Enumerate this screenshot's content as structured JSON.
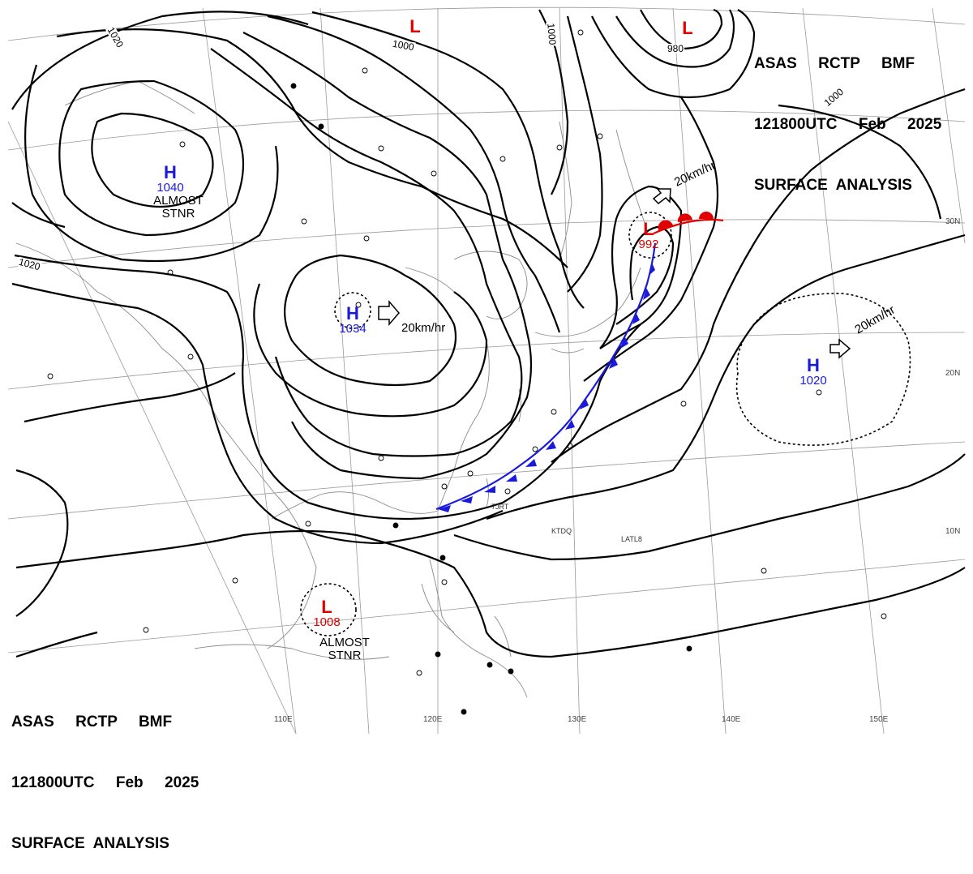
{
  "header": {
    "line1": "ASAS     RCTP     BMF",
    "line2": "121800UTC     Feb     2025",
    "line3": "SURFACE  ANALYSIS"
  },
  "pressure_centers": {
    "h_siberia": {
      "symbol": "H",
      "value": "1040",
      "note1": "ALMOST",
      "note2": "STNR"
    },
    "h_china": {
      "symbol": "H",
      "value": "1034",
      "speed": "20km/hr"
    },
    "h_pacific": {
      "symbol": "H",
      "value": "1020",
      "speed": "20km/hr"
    },
    "l_japan": {
      "symbol": "L",
      "value": "992",
      "speed": "20km/hr"
    },
    "l_scs": {
      "symbol": "L",
      "value": "1008",
      "note1": "ALMOST",
      "note2": "STNR"
    },
    "l_north": {
      "symbol": "L"
    },
    "l_ne": {
      "symbol": "L"
    }
  },
  "isobar_labels": {
    "i1020_nw": "1020",
    "i1020_w": "1020",
    "i1000_n": "1000",
    "i1000_c": "1000",
    "i980": "980",
    "i1000_e": "1000"
  },
  "grid_labels": {
    "lon": [
      "110E",
      "120E",
      "130E",
      "140E",
      "150E"
    ],
    "lat": [
      "30N",
      "20N",
      "10N"
    ]
  },
  "station_ids": [
    "7JRT",
    "KTDQ",
    "LATL8"
  ],
  "colors": {
    "high": "#1a1adb",
    "low": "#e00000",
    "cold_front": "#1a1adb",
    "warm_front": "#e00000",
    "isobar": "#000000"
  }
}
